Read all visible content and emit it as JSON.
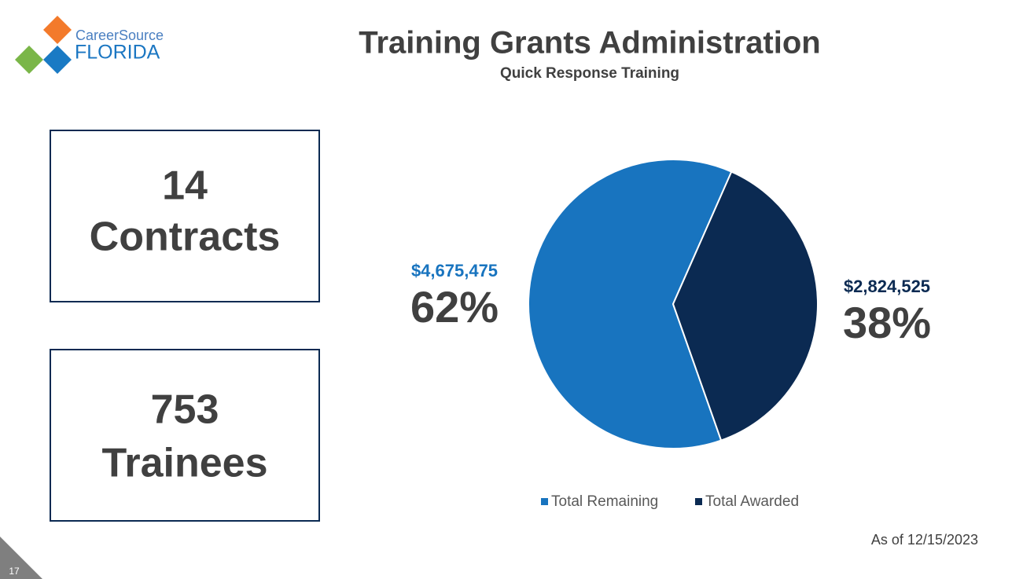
{
  "logo": {
    "line1": "CareerSource",
    "line2": "FLORIDA"
  },
  "stats": [
    {
      "number": 14,
      "label": "Contracts"
    },
    {
      "number": 753,
      "label": "Trainees"
    }
  ],
  "chart_data": {
    "type": "pie",
    "title": "Training Grants Administration",
    "subtitle": "Quick Response Training",
    "categories": [
      "Total Remaining",
      "Total Awarded"
    ],
    "values": [
      62,
      38
    ],
    "value_labels": [
      "62%",
      "38%"
    ],
    "amount_labels": [
      "$4,675,475",
      "$2,824,525"
    ],
    "colors": [
      "#1874bf",
      "#0b2a52"
    ],
    "legend": "bottom"
  },
  "footnote": "As of 12/15/2023",
  "page_number": "17"
}
